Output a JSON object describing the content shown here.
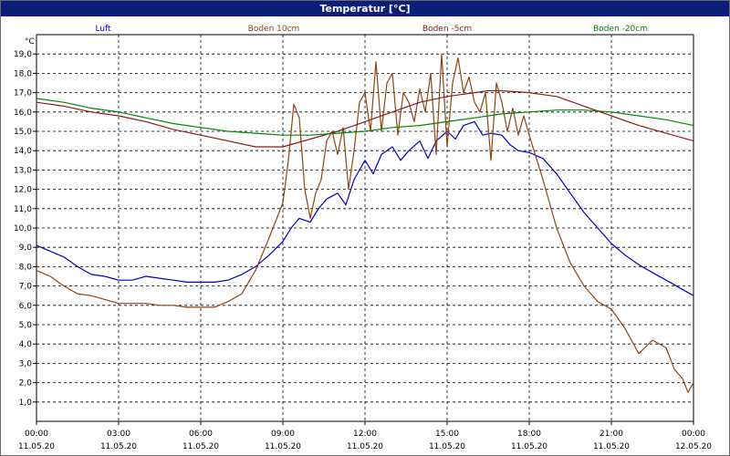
{
  "chart_data": {
    "type": "line",
    "title": "Temperatur [°C]",
    "ylabel": "°C",
    "ylim": [
      0,
      20
    ],
    "xlim": [
      "00:00",
      "24:00"
    ],
    "grid": true,
    "legend_position": "top",
    "y_ticks": [
      "1,0",
      "2,0",
      "3,0",
      "4,0",
      "5,0",
      "6,0",
      "7,0",
      "8,0",
      "9,0",
      "10,0",
      "11,0",
      "12,0",
      "13,0",
      "14,0",
      "15,0",
      "16,0",
      "17,0",
      "18,0",
      "19,0"
    ],
    "x_ticks": [
      {
        "time": "00:00",
        "date": "11.05.20"
      },
      {
        "time": "03:00",
        "date": "11.05.20"
      },
      {
        "time": "06:00",
        "date": "11.05.20"
      },
      {
        "time": "09:00",
        "date": "11.05.20"
      },
      {
        "time": "12:00",
        "date": "11.05.20"
      },
      {
        "time": "15:00",
        "date": "11.05.20"
      },
      {
        "time": "18:00",
        "date": "11.05.20"
      },
      {
        "time": "21:00",
        "date": "11.05.20"
      },
      {
        "time": "00:00",
        "date": "12.05.20"
      }
    ],
    "series": [
      {
        "name": "Luft",
        "color": "#0000cc",
        "x": [
          0,
          0.5,
          1,
          1.5,
          2,
          2.5,
          3,
          3.5,
          4,
          4.5,
          5,
          5.5,
          6,
          6.5,
          7,
          7.5,
          8,
          8.5,
          9,
          9.3,
          9.6,
          10,
          10.3,
          10.6,
          11,
          11.3,
          11.6,
          12,
          12.3,
          12.6,
          13,
          13.3,
          13.6,
          14,
          14.3,
          14.6,
          15,
          15.3,
          15.6,
          16,
          16.3,
          16.6,
          17,
          17.3,
          17.6,
          18,
          18.5,
          19,
          19.5,
          20,
          20.5,
          21,
          21.5,
          22,
          22.5,
          23,
          23.5,
          24
        ],
        "y": [
          9.1,
          8.8,
          8.5,
          8.0,
          7.6,
          7.5,
          7.3,
          7.3,
          7.5,
          7.4,
          7.3,
          7.2,
          7.2,
          7.2,
          7.3,
          7.6,
          8.0,
          8.6,
          9.3,
          10.0,
          10.5,
          10.3,
          11.0,
          11.5,
          11.8,
          11.2,
          12.5,
          13.5,
          12.8,
          13.8,
          14.2,
          13.5,
          14.0,
          14.5,
          13.6,
          14.5,
          15.0,
          14.6,
          15.3,
          15.5,
          14.8,
          14.9,
          14.8,
          14.3,
          14.0,
          13.9,
          13.6,
          12.8,
          11.8,
          10.8,
          10.0,
          9.2,
          8.6,
          8.1,
          7.7,
          7.3,
          6.9,
          6.5
        ]
      },
      {
        "name": "Boden 10cm",
        "color": "#8b4513",
        "x": [
          0,
          0.5,
          1,
          1.5,
          2,
          2.5,
          3,
          3.5,
          4,
          4.5,
          5,
          5.5,
          6,
          6.5,
          7,
          7.5,
          8,
          8.5,
          9,
          9.2,
          9.4,
          9.6,
          9.8,
          10,
          10.2,
          10.4,
          10.6,
          10.8,
          11,
          11.2,
          11.4,
          11.6,
          11.8,
          12,
          12.2,
          12.4,
          12.6,
          12.8,
          13,
          13.2,
          13.4,
          13.6,
          13.8,
          14,
          14.2,
          14.4,
          14.6,
          14.8,
          15,
          15.2,
          15.4,
          15.6,
          15.8,
          16,
          16.2,
          16.4,
          16.6,
          16.8,
          17,
          17.2,
          17.4,
          17.6,
          17.8,
          18,
          18.5,
          19,
          19.5,
          20,
          20.5,
          21,
          21.5,
          22,
          22.5,
          23,
          23.3,
          23.6,
          23.8,
          24
        ],
        "y": [
          7.8,
          7.5,
          7.0,
          6.6,
          6.5,
          6.3,
          6.1,
          6.1,
          6.1,
          6.0,
          6.0,
          5.9,
          5.9,
          5.9,
          6.2,
          6.6,
          7.8,
          9.5,
          11.3,
          13.5,
          16.4,
          15.7,
          12.0,
          10.5,
          11.8,
          12.5,
          14.5,
          15.0,
          13.8,
          15.2,
          12.0,
          14.0,
          16.5,
          17.0,
          15.0,
          18.6,
          15.0,
          17.5,
          18.0,
          14.8,
          17.0,
          16.5,
          15.5,
          17.2,
          16.0,
          18.0,
          13.8,
          19.0,
          14.2,
          17.5,
          18.8,
          17.0,
          17.8,
          16.5,
          16.0,
          17.0,
          13.5,
          17.5,
          16.5,
          15.0,
          16.2,
          14.8,
          15.8,
          14.8,
          12.5,
          10.0,
          8.2,
          7.0,
          6.2,
          5.8,
          4.8,
          3.5,
          4.2,
          3.8,
          2.7,
          2.2,
          1.5,
          2.0
        ]
      },
      {
        "name": "Boden -5cm",
        "color": "#8b1a1a",
        "x": [
          0,
          1,
          2,
          3,
          4,
          5,
          6,
          7,
          8,
          9,
          10,
          11,
          12,
          13,
          14,
          15,
          15.5,
          16,
          16.5,
          17,
          18,
          19,
          20,
          21,
          22,
          23,
          24
        ],
        "y": [
          16.5,
          16.3,
          16.0,
          15.8,
          15.5,
          15.1,
          14.8,
          14.5,
          14.2,
          14.2,
          14.6,
          15.0,
          15.5,
          16.0,
          16.5,
          16.8,
          16.9,
          17.0,
          17.1,
          17.1,
          17.0,
          16.8,
          16.3,
          15.8,
          15.3,
          14.9,
          14.5
        ]
      },
      {
        "name": "Boden -20cm",
        "color": "#008800",
        "x": [
          0,
          1,
          2,
          3,
          4,
          5,
          6,
          7,
          8,
          9,
          10,
          11,
          12,
          13,
          14,
          15,
          16,
          17,
          18,
          19,
          20,
          21,
          22,
          23,
          24
        ],
        "y": [
          16.7,
          16.5,
          16.2,
          16.0,
          15.7,
          15.4,
          15.2,
          15.0,
          14.9,
          14.8,
          14.8,
          14.9,
          15.0,
          15.2,
          15.3,
          15.5,
          15.7,
          15.9,
          16.0,
          16.1,
          16.1,
          16.0,
          15.8,
          15.6,
          15.3
        ]
      }
    ]
  }
}
